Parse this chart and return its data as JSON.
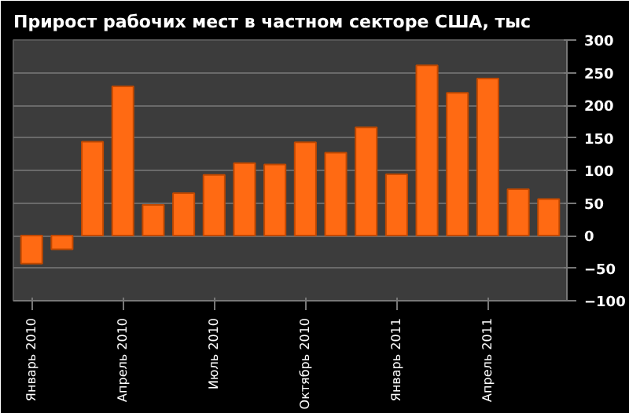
{
  "chart_data": {
    "type": "bar",
    "title": "Прирост рабочих мест в частном секторе США, тыс",
    "categories": [
      "Январь 2010",
      null,
      null,
      "Апрель 2010",
      null,
      null,
      "Июль 2010",
      null,
      null,
      "Октябрь 2010",
      null,
      null,
      "Январь 2011",
      null,
      null,
      "Апрель 2011",
      null,
      null
    ],
    "values": [
      -43,
      -21,
      144,
      229,
      47,
      65,
      93,
      111,
      109,
      143,
      127,
      166,
      94,
      261,
      219,
      241,
      71,
      56
    ],
    "color": "#ff6a13",
    "ylim": [
      -100,
      300
    ],
    "yticks": [
      -100,
      -50,
      0,
      50,
      100,
      150,
      200,
      250,
      300
    ],
    "grid": "y"
  }
}
